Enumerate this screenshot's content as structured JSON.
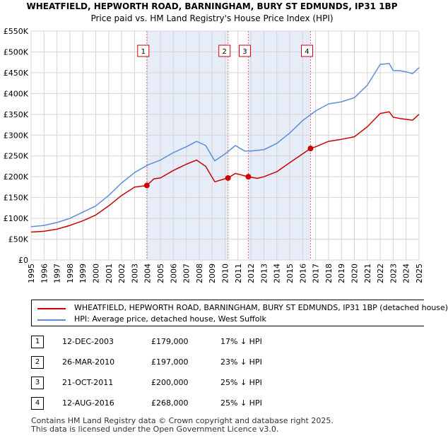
{
  "chart_data": {
    "type": "line",
    "title": "WHEATFIELD, HEPWORTH ROAD, BARNINGHAM, BURY ST EDMUNDS, IP31 1BP",
    "subtitle": "Price paid vs. HM Land Registry's House Price Index (HPI)",
    "xlabel": "",
    "ylabel": "",
    "xlim": [
      1995,
      2025
    ],
    "ylim": [
      0,
      550000
    ],
    "y_ticks": [
      0,
      50000,
      100000,
      150000,
      200000,
      250000,
      300000,
      350000,
      400000,
      450000,
      500000,
      550000
    ],
    "y_tick_labels": [
      "£0",
      "£50K",
      "£100K",
      "£150K",
      "£200K",
      "£250K",
      "£300K",
      "£350K",
      "£400K",
      "£450K",
      "£500K",
      "£550K"
    ],
    "x_ticks": [
      1995,
      1996,
      1997,
      1998,
      1999,
      2000,
      2001,
      2002,
      2003,
      2004,
      2005,
      2006,
      2007,
      2008,
      2009,
      2010,
      2011,
      2012,
      2013,
      2014,
      2015,
      2016,
      2017,
      2018,
      2019,
      2020,
      2021,
      2022,
      2023,
      2024,
      2025
    ],
    "x_tick_labels": [
      "1995",
      "1996",
      "1997",
      "1998",
      "1999",
      "2000",
      "2001",
      "2002",
      "2003",
      "2004",
      "2005",
      "2006",
      "2007",
      "2008",
      "2009",
      "2010",
      "2011",
      "2012",
      "2013",
      "2014",
      "2015",
      "2016",
      "2017",
      "2018",
      "2019",
      "2020",
      "2021",
      "2022",
      "2023",
      "2024",
      "2025"
    ],
    "grid": true,
    "shaded_ranges": [
      [
        2003.95,
        2010.23
      ],
      [
        2011.8,
        2016.61
      ]
    ],
    "series": [
      {
        "name": "WHEATFIELD, HEPWORTH ROAD, BARNINGHAM, BURY ST EDMUNDS, IP31 1BP (detached house)",
        "color": "#cc0000",
        "x": [
          1995,
          1996,
          1997,
          1998,
          1999,
          2000,
          2001,
          2002,
          2003,
          2003.95,
          2004.5,
          2005,
          2006,
          2007,
          2007.8,
          2008.5,
          2009.2,
          2010.23,
          2010.8,
          2011.8,
          2012.5,
          2013,
          2014,
          2015,
          2016.61,
          2017,
          2018,
          2019,
          2020,
          2021,
          2022,
          2022.7,
          2023,
          2023.5,
          2024,
          2024.5,
          2025
        ],
        "y": [
          67000,
          69000,
          74000,
          83000,
          94000,
          108000,
          130000,
          155000,
          175000,
          179000,
          195000,
          197000,
          215000,
          230000,
          240000,
          225000,
          188000,
          197000,
          208000,
          200000,
          196000,
          200000,
          212000,
          234000,
          268000,
          272000,
          285000,
          290000,
          296000,
          320000,
          352000,
          356000,
          343000,
          340000,
          338000,
          336000,
          350000
        ]
      },
      {
        "name": "HPI: Average price, detached house, West Suffolk",
        "color": "#5b8ed6",
        "x": [
          1995,
          1996,
          1997,
          1998,
          1999,
          2000,
          2001,
          2002,
          2003,
          2004,
          2005,
          2006,
          2007,
          2007.8,
          2008.5,
          2009.2,
          2010,
          2010.8,
          2011.5,
          2012,
          2013,
          2014,
          2015,
          2016,
          2017,
          2018,
          2019,
          2020,
          2021,
          2022,
          2022.7,
          2023,
          2023.5,
          2024,
          2024.5,
          2025
        ],
        "y": [
          80000,
          83000,
          90000,
          100000,
          115000,
          130000,
          155000,
          185000,
          210000,
          228000,
          240000,
          258000,
          272000,
          285000,
          275000,
          238000,
          255000,
          275000,
          262000,
          262000,
          265000,
          280000,
          305000,
          335000,
          358000,
          375000,
          380000,
          390000,
          420000,
          470000,
          472000,
          455000,
          455000,
          452000,
          448000,
          462000
        ]
      }
    ],
    "markers": [
      {
        "label": "1",
        "x": 2003.95,
        "y": 179000
      },
      {
        "label": "2",
        "x": 2010.23,
        "y": 197000
      },
      {
        "label": "3",
        "x": 2011.8,
        "y": 200000
      },
      {
        "label": "4",
        "x": 2016.61,
        "y": 268000
      }
    ]
  },
  "legend": {
    "property_label": "WHEATFIELD, HEPWORTH ROAD, BARNINGHAM, BURY ST EDMUNDS, IP31 1BP (detached house)",
    "hpi_label": "HPI: Average price, detached house, West Suffolk",
    "property_color": "#cc0000",
    "hpi_color": "#5b8ed6"
  },
  "sales": [
    {
      "num": "1",
      "date": "12-DEC-2003",
      "price": "£179,000",
      "hpi": "17% ↓ HPI"
    },
    {
      "num": "2",
      "date": "26-MAR-2010",
      "price": "£197,000",
      "hpi": "23% ↓ HPI"
    },
    {
      "num": "3",
      "date": "21-OCT-2011",
      "price": "£200,000",
      "hpi": "25% ↓ HPI"
    },
    {
      "num": "4",
      "date": "12-AUG-2016",
      "price": "£268,000",
      "hpi": "25% ↓ HPI"
    }
  ],
  "footer": {
    "line1": "Contains HM Land Registry data © Crown copyright and database right 2025.",
    "line2": "This data is licensed under the Open Government Licence v3.0."
  }
}
